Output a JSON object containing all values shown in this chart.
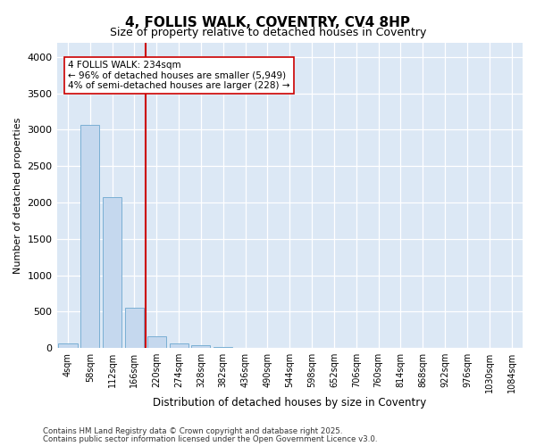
{
  "title": "4, FOLLIS WALK, COVENTRY, CV4 8HP",
  "subtitle": "Size of property relative to detached houses in Coventry",
  "xlabel": "Distribution of detached houses by size in Coventry",
  "ylabel": "Number of detached properties",
  "bar_color": "#c5d8ee",
  "bar_edge_color": "#7aafd4",
  "plot_bg": "#dce8f5",
  "fig_bg": "#ffffff",
  "grid_color": "#ffffff",
  "vline_color": "#cc0000",
  "vline_pos": 3.5,
  "annotation_text": "4 FOLLIS WALK: 234sqm\n← 96% of detached houses are smaller (5,949)\n4% of semi-detached houses are larger (228) →",
  "categories": [
    "4sqm",
    "58sqm",
    "112sqm",
    "166sqm",
    "220sqm",
    "274sqm",
    "328sqm",
    "382sqm",
    "436sqm",
    "490sqm",
    "544sqm",
    "598sqm",
    "652sqm",
    "706sqm",
    "760sqm",
    "814sqm",
    "868sqm",
    "922sqm",
    "976sqm",
    "1030sqm",
    "1084sqm"
  ],
  "values": [
    70,
    3070,
    2070,
    555,
    160,
    60,
    45,
    10,
    0,
    0,
    0,
    0,
    0,
    0,
    0,
    0,
    0,
    0,
    0,
    0,
    0
  ],
  "ylim_max": 4200,
  "yticks": [
    0,
    500,
    1000,
    1500,
    2000,
    2500,
    3000,
    3500,
    4000
  ],
  "footer1": "Contains HM Land Registry data © Crown copyright and database right 2025.",
  "footer2": "Contains public sector information licensed under the Open Government Licence v3.0."
}
